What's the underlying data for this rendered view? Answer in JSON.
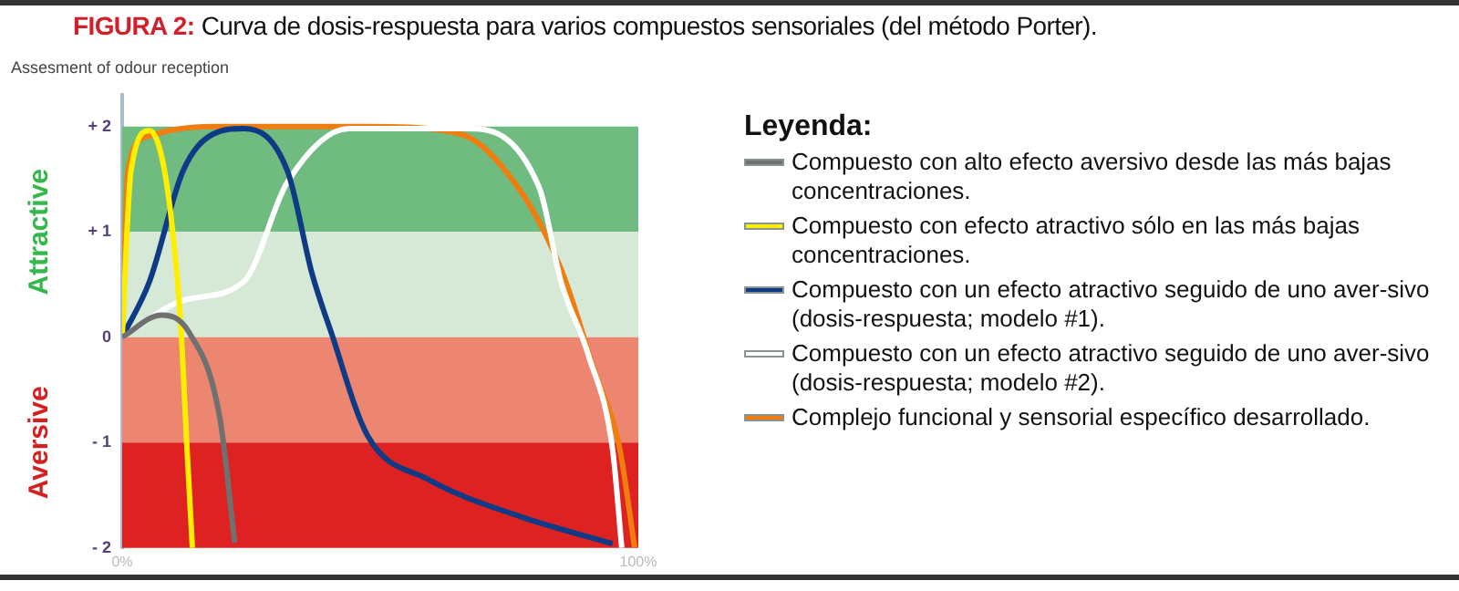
{
  "chart_data": {
    "type": "line",
    "title": "FIGURA 2: Curva de dosis-respuesta para varios compuestos sensoriales (del método Porter).",
    "ylabel": "Assesment of odour reception",
    "legend_title": "Leyenda:",
    "legend": "right",
    "grid": false,
    "marker": "none",
    "line_style": "solid",
    "xlim": [
      0,
      100
    ],
    "xticks": [
      {
        "value": 0,
        "label": "0%"
      },
      {
        "value": 100,
        "label": "100%"
      }
    ],
    "ylim": [
      -2,
      2.3
    ],
    "yticks": [
      {
        "value": 2,
        "label": "+ 2"
      },
      {
        "value": 1,
        "label": "+ 1"
      },
      {
        "value": 0,
        "label": "0"
      },
      {
        "value": -1,
        "label": "- 1"
      },
      {
        "value": -2,
        "label": "- 2"
      }
    ],
    "bands": [
      {
        "axis": "y",
        "from": 1,
        "to": 2,
        "color": "#6fbb80"
      },
      {
        "axis": "y",
        "from": 0,
        "to": 1,
        "color": "#d5e9d6"
      },
      {
        "axis": "y",
        "from": -1,
        "to": 0,
        "color": "#ec8670"
      },
      {
        "axis": "y",
        "from": -2,
        "to": -1,
        "color": "#de2222"
      }
    ],
    "annotations": [
      "Attractive",
      "Aversive"
    ],
    "series": [
      {
        "name": "Compuesto con alto efecto aversivo desde las más bajas concentraciones.",
        "color": "#707070",
        "x": [
          0,
          7.6,
          12.9,
          18.9,
          21.8
        ],
        "values": [
          0,
          0.21,
          0.05,
          -0.76,
          -1.95
        ]
      },
      {
        "name": "Compuesto con efecto atractivo sólo en las más bajas concentraciones.",
        "color": "#ffee00",
        "x": [
          0,
          1.7,
          5.3,
          8.2,
          10.6,
          11.5,
          12.5,
          13.6
        ],
        "values": [
          0,
          1.58,
          1.96,
          1.58,
          0.6,
          0,
          -1,
          -2
        ]
      },
      {
        "name": "Compuesto con un efecto atractivo seguido de uno aver-sivo (dosis-respuesta; modelo #1).",
        "color": "#0f3a85",
        "x": [
          0,
          5.3,
          11.8,
          17.7,
          23.6,
          32,
          36.8,
          40.4,
          47.5,
          59.3,
          77,
          95
        ],
        "values": [
          0,
          0.53,
          1.58,
          1.93,
          1.98,
          1.58,
          0.6,
          0.06,
          -0.93,
          -1.35,
          -1.7,
          -1.96
        ]
      },
      {
        "name": "Compuesto con un efecto atractivo seguido de uno aver-sivo (dosis-respuesta; modelo #2).",
        "color": "#ffffff",
        "x": [
          0,
          11.8,
          23.6,
          32,
          43.9,
          66.4,
          80.8,
          85,
          90.4,
          95,
          96.8
        ],
        "values": [
          0,
          0.35,
          0.53,
          1.47,
          1.98,
          1.98,
          1.42,
          0.53,
          -0.18,
          -1.06,
          -2
        ]
      },
      {
        "name": "Complejo funcional y sensorial específico desarrollado.",
        "color": "#f07d10",
        "x": [
          0,
          1.1,
          4.6,
          17.7,
          47.5,
          65.4,
          77,
          85,
          91.4,
          96.4,
          99.3
        ],
        "values": [
          0,
          1.58,
          1.9,
          2,
          2,
          1.93,
          1.4,
          0.65,
          -0.3,
          -1.06,
          -2
        ]
      }
    ]
  }
}
